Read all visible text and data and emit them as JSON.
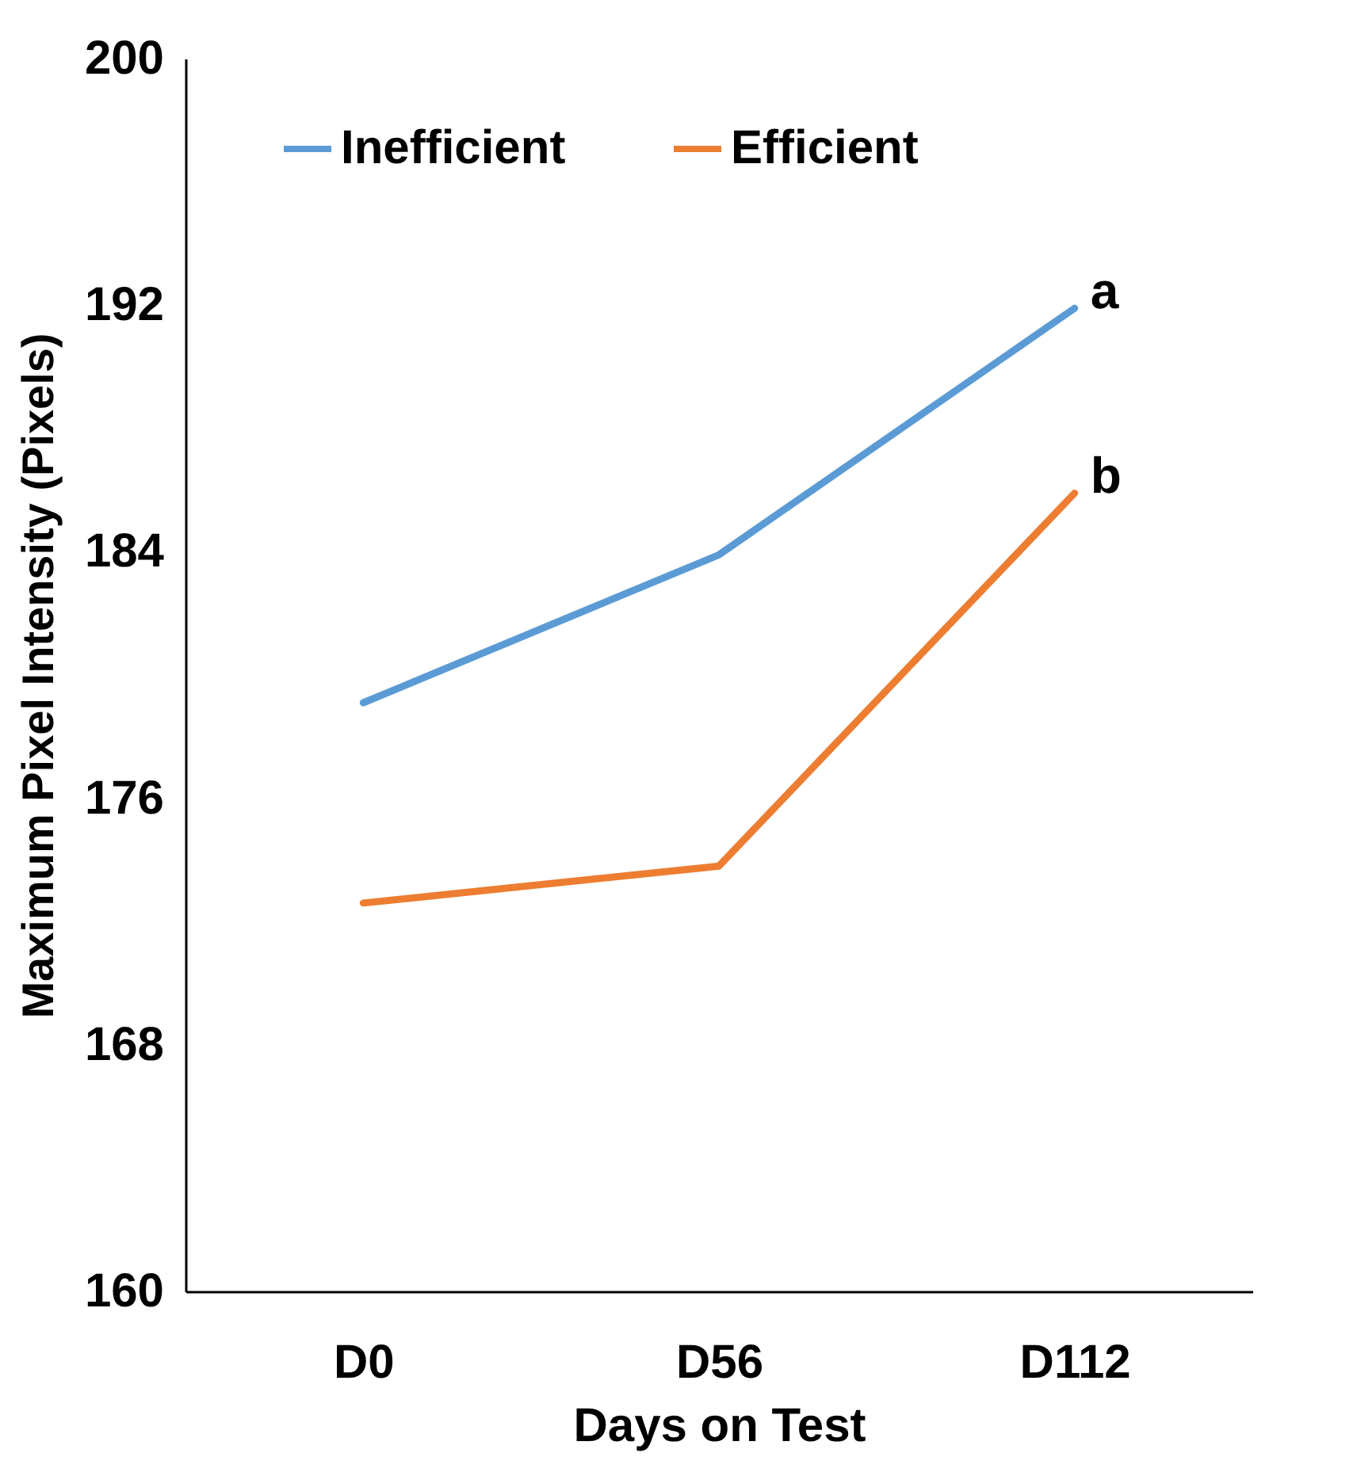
{
  "chart_data": {
    "type": "line",
    "xlabel": "Days on Test",
    "ylabel": "Maximum Pixel Intensity (Pixels)",
    "categories": [
      "D0",
      "D56",
      "D112"
    ],
    "series": [
      {
        "name": "Inefficient",
        "color": "#5b9bd5",
        "values": [
          179.1,
          183.9,
          191.9
        ]
      },
      {
        "name": "Efficient",
        "color": "#ed7d31",
        "values": [
          172.6,
          173.8,
          185.9
        ]
      }
    ],
    "ylim": [
      160,
      200
    ],
    "yticks": [
      160,
      168,
      176,
      184,
      192,
      200
    ],
    "grid": false,
    "legend": "top",
    "marker": "none",
    "line_style": "solid",
    "annotations": [
      {
        "text": "a",
        "x": "D112",
        "y": 191.9
      },
      {
        "text": "b",
        "x": "D112",
        "y": 185.9
      }
    ]
  }
}
